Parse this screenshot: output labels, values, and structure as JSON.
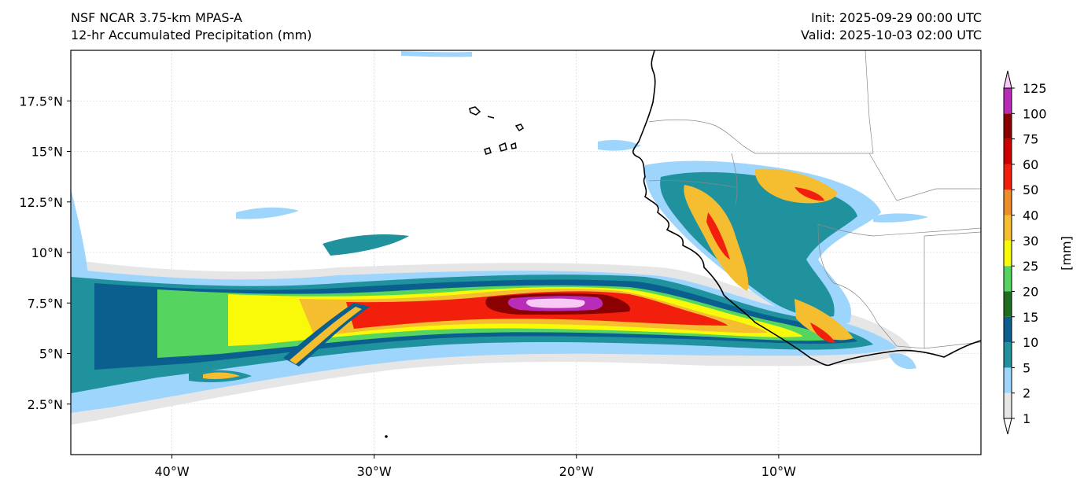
{
  "header": {
    "left_line1": "NSF NCAR 3.75-km MPAS-A",
    "left_line2": "12-hr Accumulated Precipitation (mm)",
    "right_line1": "Init: 2025-09-29 00:00 UTC",
    "right_line2": "Valid: 2025-10-03 02:00 UTC"
  },
  "map": {
    "lon_range": [
      -45,
      0
    ],
    "lat_range": [
      0,
      20
    ],
    "lat_ticks": [
      {
        "value": 2.5,
        "label": "2.5°N"
      },
      {
        "value": 5,
        "label": "5°N"
      },
      {
        "value": 7.5,
        "label": "7.5°N"
      },
      {
        "value": 10,
        "label": "10°N"
      },
      {
        "value": 12.5,
        "label": "12.5°N"
      },
      {
        "value": 15,
        "label": "15°N"
      },
      {
        "value": 17.5,
        "label": "17.5°N"
      }
    ],
    "lon_ticks": [
      {
        "value": -40,
        "label": "40°W"
      },
      {
        "value": -30,
        "label": "30°W"
      },
      {
        "value": -20,
        "label": "20°W"
      },
      {
        "value": -10,
        "label": "10°W"
      }
    ],
    "gridlines": true
  },
  "colorbar": {
    "unit_label": "[mm]",
    "levels": [
      "1",
      "2",
      "5",
      "10",
      "15",
      "20",
      "25",
      "30",
      "40",
      "50",
      "60",
      "75",
      "100",
      "125"
    ],
    "colors": [
      "#e6e6e6",
      "#9ed5fd",
      "#20929e",
      "#0b5f8e",
      "#1f6e1f",
      "#55d45f",
      "#f9f90a",
      "#f5bd30",
      "#ec8d27",
      "#f11f0c",
      "#cd0000",
      "#8b0000",
      "#b82cb7",
      "#f9c8f4"
    ]
  }
}
